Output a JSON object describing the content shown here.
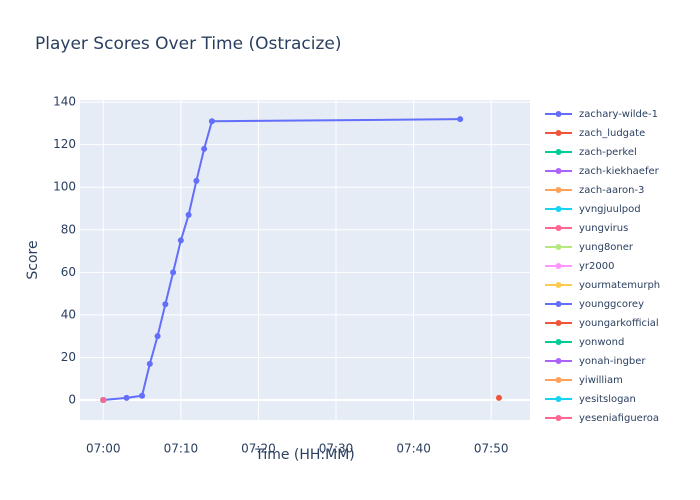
{
  "chart_data": {
    "type": "line",
    "title": "Player Scores Over Time (Ostracize)",
    "x_label": "Time (HH:MM)",
    "y_label": "Score",
    "xlim": [
      "06:57",
      "07:55"
    ],
    "xticks": [
      "07:00",
      "07:10",
      "07:20",
      "07:30",
      "07:40",
      "07:50"
    ],
    "ylim": [
      -9.4,
      141
    ],
    "yticks": [
      0,
      20,
      40,
      60,
      80,
      100,
      120,
      140
    ],
    "grid": true,
    "series": [
      {
        "name": "zachary-wilde-1",
        "color": "#636efa",
        "x": [
          "07:00",
          "07:03",
          "07:05",
          "07:06",
          "07:07",
          "07:08",
          "07:09",
          "07:10",
          "07:11",
          "07:12",
          "07:13",
          "07:14",
          "07:46"
        ],
        "values": [
          0,
          1,
          2,
          17,
          30,
          45,
          60,
          75,
          87,
          103,
          118,
          131,
          132
        ]
      },
      {
        "name": "zach_ludgate",
        "color": "#EF553B",
        "x": [
          "07:51"
        ],
        "values": [
          1
        ]
      },
      {
        "name": "zach-perkel",
        "color": "#00cc96",
        "x": [
          "07:00"
        ],
        "values": [
          0
        ]
      },
      {
        "name": "zach-kiekhaefer",
        "color": "#ab63fa",
        "x": [
          "07:00"
        ],
        "values": [
          0
        ]
      },
      {
        "name": "zach-aaron-3",
        "color": "#FFA15A",
        "x": [
          "07:00"
        ],
        "values": [
          0
        ]
      },
      {
        "name": "yvngjuulpod",
        "color": "#19d3f3",
        "x": [
          "07:00"
        ],
        "values": [
          0
        ]
      },
      {
        "name": "yungvirus",
        "color": "#FF6692",
        "x": [
          "07:00"
        ],
        "values": [
          0
        ]
      },
      {
        "name": "yung8oner",
        "color": "#B6E880",
        "x": [
          "07:00"
        ],
        "values": [
          0
        ]
      },
      {
        "name": "yr2000",
        "color": "#FF97FF",
        "x": [
          "07:00"
        ],
        "values": [
          0
        ]
      },
      {
        "name": "yourmatemurph",
        "color": "#FECB52",
        "x": [
          "07:00"
        ],
        "values": [
          0
        ]
      },
      {
        "name": "younggcorey",
        "color": "#636efa",
        "x": [
          "07:00"
        ],
        "values": [
          0
        ]
      },
      {
        "name": "youngarkofficial",
        "color": "#EF553B",
        "x": [
          "07:00"
        ],
        "values": [
          0
        ]
      },
      {
        "name": "yonwond",
        "color": "#00cc96",
        "x": [
          "07:00"
        ],
        "values": [
          0
        ]
      },
      {
        "name": "yonah-ingber",
        "color": "#ab63fa",
        "x": [
          "07:00"
        ],
        "values": [
          0
        ]
      },
      {
        "name": "yiwilliam",
        "color": "#FFA15A",
        "x": [
          "07:00"
        ],
        "values": [
          0
        ]
      },
      {
        "name": "yesitslogan",
        "color": "#19d3f3",
        "x": [
          "07:00"
        ],
        "values": [
          0
        ]
      },
      {
        "name": "yeseniafigueroa",
        "color": "#FF6692",
        "x": [
          "07:00"
        ],
        "values": [
          0
        ]
      }
    ]
  }
}
